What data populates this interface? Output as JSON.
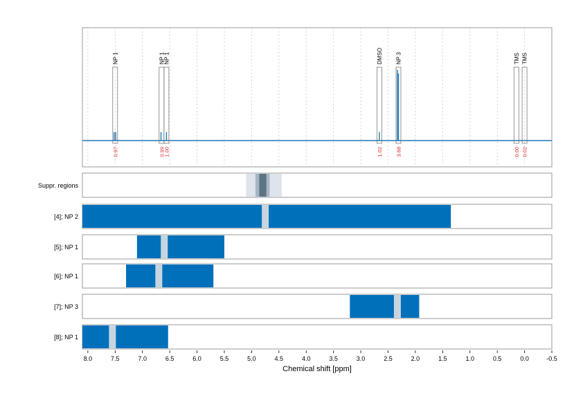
{
  "chart_data": {
    "type": "nmr-spectrum-with-multiplet-ranges",
    "xlabel": "Chemical shift [ppm]",
    "x_axis": {
      "min": 8.1,
      "max": -0.5,
      "reversed": true,
      "ticks": [
        8.0,
        7.5,
        7.0,
        6.5,
        6.0,
        5.5,
        5.0,
        4.5,
        4.0,
        3.5,
        3.0,
        2.5,
        2.0,
        1.5,
        1.0,
        0.5,
        0.0,
        -0.5
      ],
      "tick_labels": [
        "8.0",
        "7.5",
        "7.0",
        "6.5",
        "6.0",
        "5.5",
        "5.0",
        "4.5",
        "4.0",
        "3.5",
        "3.0",
        "2.5",
        "2.0",
        "1.5",
        "1.0",
        "0.5",
        "0.0",
        "-0.5"
      ]
    },
    "grid": true,
    "spectrum": {
      "color": "#1f77b4",
      "peaks": [
        {
          "x": 7.52,
          "h": 0.12,
          "w": 0.008
        },
        {
          "x": 7.49,
          "h": 0.12,
          "w": 0.008
        },
        {
          "x": 6.66,
          "h": 0.12,
          "w": 0.008
        },
        {
          "x": 6.56,
          "h": 0.12,
          "w": 0.008
        },
        {
          "x": 2.66,
          "h": 0.12,
          "w": 0.008
        },
        {
          "x": 2.33,
          "h": 1.0,
          "w": 0.006
        },
        {
          "x": 2.31,
          "h": 0.95,
          "w": 0.006
        }
      ]
    },
    "annotations": [
      {
        "label": "NP 1",
        "x": 7.5,
        "integral": "0.97",
        "tall": true
      },
      {
        "label": "NP 1",
        "x": 6.65,
        "integral": "0.99",
        "tall": true
      },
      {
        "label": "NP 1",
        "x": 6.56,
        "integral": "1.00",
        "tall": true
      },
      {
        "label": "DMSO",
        "x": 2.66,
        "integral": "1.02",
        "tall": true
      },
      {
        "label": "NP 3",
        "x": 2.31,
        "integral": "3.68",
        "tall": true
      },
      {
        "label": "TMS",
        "x": 0.15,
        "integral": "0.00",
        "tall": true
      },
      {
        "label": "TMS",
        "x": 0.0,
        "integral": "0.02",
        "tall": true
      }
    ],
    "suppression": {
      "label": "Suppr. regions",
      "outer": [
        5.1,
        4.45
      ],
      "mid": [
        4.93,
        4.67
      ],
      "inner": [
        4.86,
        4.73
      ]
    },
    "rows": [
      {
        "label": "[4]; NP 2",
        "range": [
          8.1,
          1.35
        ],
        "marker": 4.75
      },
      {
        "label": "[5]; NP 1",
        "range": [
          7.1,
          5.5
        ],
        "marker": 6.6
      },
      {
        "label": "[6]; NP 1",
        "range": [
          7.3,
          5.7
        ],
        "marker": 6.7
      },
      {
        "label": "[7]; NP 3",
        "range": [
          3.2,
          1.93
        ],
        "marker": 2.33
      },
      {
        "label": "[8]; NP 1",
        "range": [
          8.1,
          6.53
        ],
        "marker": 7.55
      }
    ],
    "colors": {
      "range_fill": "#0070bb",
      "marker": "#c7d5e0",
      "supp_outer": "#dde4eb",
      "supp_mid": "#a7b6c4",
      "supp_inner": "#5e7383",
      "integral": "#d62728",
      "frame": "#9a9a9a"
    }
  }
}
